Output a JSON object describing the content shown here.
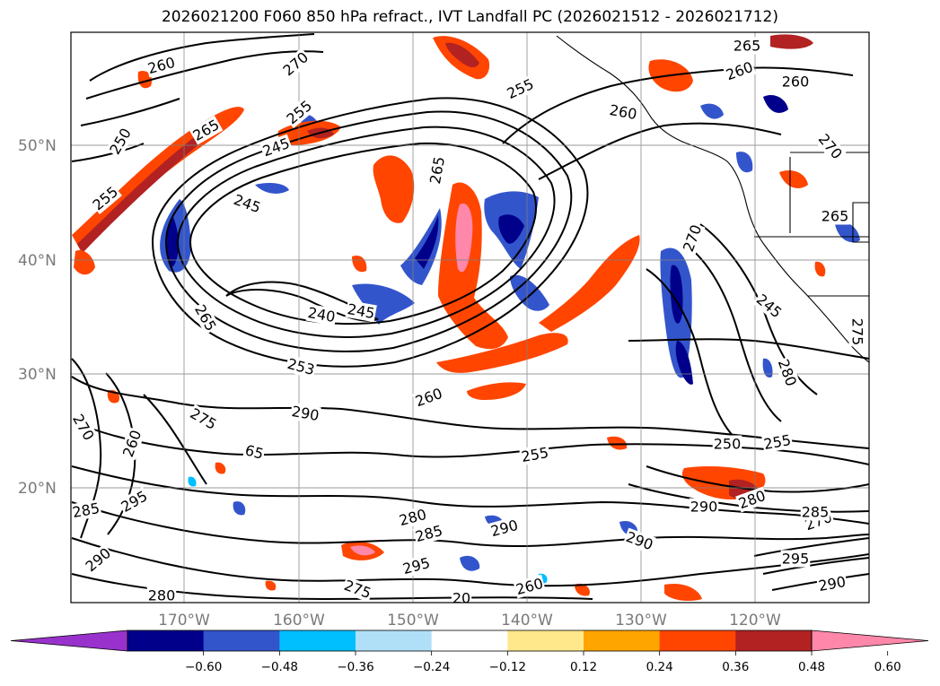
{
  "title": "2026021200 F060 850 hPa refract., IVT Landfall PC (2026021512 - 2026021712)",
  "map": {
    "lat_labels": [
      "50°N",
      "40°N",
      "30°N",
      "20°N"
    ],
    "lon_labels": [
      "170°W",
      "160°W",
      "150°W",
      "140°W",
      "130°W",
      "120°W"
    ],
    "contour_values": [
      "260",
      "270",
      "250",
      "265",
      "255",
      "245",
      "245",
      "255",
      "265",
      "240",
      "245",
      "265",
      "253",
      "260",
      "255",
      "260",
      "260",
      "260",
      "265",
      "270",
      "265",
      "270",
      "245",
      "280",
      "290",
      "275",
      "65",
      "260",
      "270",
      "285",
      "295",
      "290",
      "280",
      "275",
      "280",
      "285",
      "290",
      "290",
      "295",
      "275",
      "260",
      "255",
      "250",
      "255",
      "290",
      "280",
      "270",
      "285",
      "295",
      "290",
      "20"
    ]
  },
  "colorbar": {
    "colors": [
      "#9932CC",
      "#00008B",
      "#3355CC",
      "#00BFFF",
      "#B0E0F8",
      "#FFFFFF",
      "#FFE88C",
      "#FFA500",
      "#FF4500",
      "#B22222",
      "#FF88AA"
    ],
    "tick_labels": [
      "−0.60",
      "−0.48",
      "−0.36",
      "−0.24",
      "−0.12",
      "0.12",
      "0.24",
      "0.36",
      "0.48",
      "0.60"
    ]
  }
}
